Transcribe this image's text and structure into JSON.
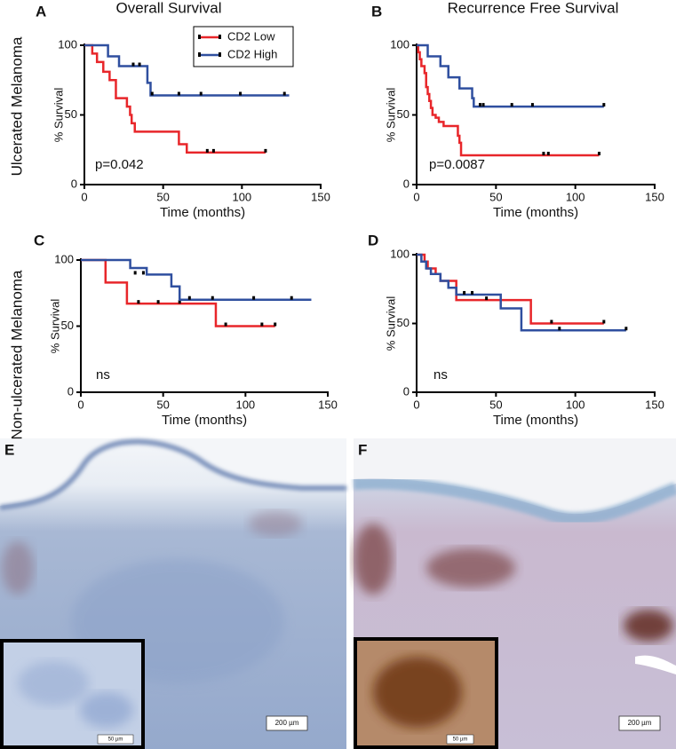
{
  "row_labels": [
    "Ulcerated Melanoma",
    "Non-ulcerated Melanoma"
  ],
  "chart_data": [
    {
      "type": "step",
      "panel": "A",
      "title": "Overall Survival",
      "xlabel": "Time (months)",
      "ylabel": "% Survival",
      "annotation": "p=0.042",
      "xlim": [
        0,
        150
      ],
      "ylim": [
        0,
        100
      ],
      "xticks": [
        0,
        50,
        100,
        150
      ],
      "yticks": [
        0,
        50,
        100
      ],
      "legend": "top-center",
      "series": [
        {
          "name": "CD2 Low",
          "color": "#e8262a",
          "x": [
            0,
            5,
            8,
            12,
            16,
            20,
            27,
            29,
            30,
            32,
            60,
            65,
            115
          ],
          "values": [
            100,
            94,
            88,
            81,
            75,
            62,
            56,
            50,
            44,
            38,
            29,
            23,
            23
          ],
          "censored": {
            "x": [
              78,
              82,
              115
            ],
            "values": [
              23,
              23,
              23
            ]
          }
        },
        {
          "name": "CD2 High",
          "color": "#2f4f9f",
          "x": [
            0,
            15,
            22,
            36,
            40,
            42,
            130
          ],
          "values": [
            100,
            92,
            85,
            85,
            73,
            64,
            64
          ],
          "censored": {
            "x": [
              31,
              35,
              43,
              60,
              74,
              99,
              127
            ],
            "values": [
              85,
              85,
              64,
              64,
              64,
              64,
              64
            ]
          }
        }
      ]
    },
    {
      "type": "step",
      "panel": "B",
      "title": "Recurrence Free Survival",
      "xlabel": "Time (months)",
      "ylabel": "% Survival",
      "annotation": "p=0.0087",
      "xlim": [
        0,
        150
      ],
      "ylim": [
        0,
        100
      ],
      "xticks": [
        0,
        50,
        100,
        150
      ],
      "yticks": [
        0,
        50,
        100
      ],
      "series": [
        {
          "color": "#e8262a",
          "x": [
            0,
            1,
            2,
            3,
            5,
            6,
            7,
            8,
            9,
            10,
            12,
            14,
            17,
            26,
            27,
            28,
            115
          ],
          "values": [
            100,
            95,
            90,
            85,
            80,
            70,
            65,
            60,
            55,
            50,
            48,
            45,
            42,
            35,
            30,
            21,
            21
          ],
          "censored": {
            "x": [
              80,
              83,
              115
            ],
            "values": [
              21,
              21,
              21
            ]
          }
        },
        {
          "color": "#2f4f9f",
          "x": [
            0,
            7,
            15,
            20,
            27,
            33,
            35,
            36,
            118
          ],
          "values": [
            100,
            92,
            85,
            77,
            69,
            69,
            62,
            56,
            56
          ],
          "censored": {
            "x": [
              40,
              42,
              60,
              73,
              118
            ],
            "values": [
              56,
              56,
              56,
              56,
              56
            ]
          }
        }
      ]
    },
    {
      "type": "step",
      "panel": "C",
      "xlabel": "Time (months)",
      "ylabel": "% Survival",
      "annotation": "ns",
      "xlim": [
        0,
        150
      ],
      "ylim": [
        0,
        100
      ],
      "xticks": [
        0,
        50,
        100,
        150
      ],
      "yticks": [
        0,
        50,
        100
      ],
      "series": [
        {
          "color": "#e8262a",
          "x": [
            0,
            15,
            28,
            80,
            82,
            118
          ],
          "values": [
            100,
            83,
            67,
            67,
            50,
            50
          ],
          "censored": {
            "x": [
              35,
              47,
              60,
              88,
              110,
              118
            ],
            "values": [
              67,
              67,
              67,
              50,
              50,
              50
            ]
          }
        },
        {
          "color": "#2f4f9f",
          "x": [
            0,
            30,
            40,
            55,
            60,
            140
          ],
          "values": [
            100,
            94,
            89,
            80,
            70,
            70
          ],
          "censored": {
            "x": [
              33,
              38,
              66,
              80,
              105,
              128
            ],
            "values": [
              89,
              89,
              70,
              70,
              70,
              70
            ]
          }
        }
      ]
    },
    {
      "type": "step",
      "panel": "D",
      "xlabel": "Time (months)",
      "ylabel": "% Survival",
      "annotation": "ns",
      "xlim": [
        0,
        150
      ],
      "ylim": [
        0,
        100
      ],
      "xticks": [
        0,
        50,
        100,
        150
      ],
      "yticks": [
        0,
        50,
        100
      ],
      "series": [
        {
          "color": "#e8262a",
          "x": [
            0,
            5,
            7,
            12,
            15,
            25,
            72,
            118
          ],
          "values": [
            100,
            95,
            90,
            86,
            81,
            67,
            50,
            50
          ],
          "censored": {
            "x": [
              44,
              85,
              118
            ],
            "values": [
              67,
              50,
              50
            ]
          }
        },
        {
          "color": "#2f4f9f",
          "x": [
            0,
            3,
            6,
            9,
            15,
            20,
            25,
            53,
            66,
            132
          ],
          "values": [
            100,
            95,
            90,
            86,
            81,
            76,
            71,
            61,
            45,
            45
          ],
          "censored": {
            "x": [
              30,
              35,
              90,
              132
            ],
            "values": [
              71,
              71,
              45,
              45
            ]
          }
        }
      ]
    }
  ],
  "images": [
    {
      "panel": "E",
      "scale_bar": "200 µm",
      "inset_scale_bar": "50 µm"
    },
    {
      "panel": "F",
      "scale_bar": "200 µm",
      "inset_scale_bar": "50 µm"
    }
  ]
}
